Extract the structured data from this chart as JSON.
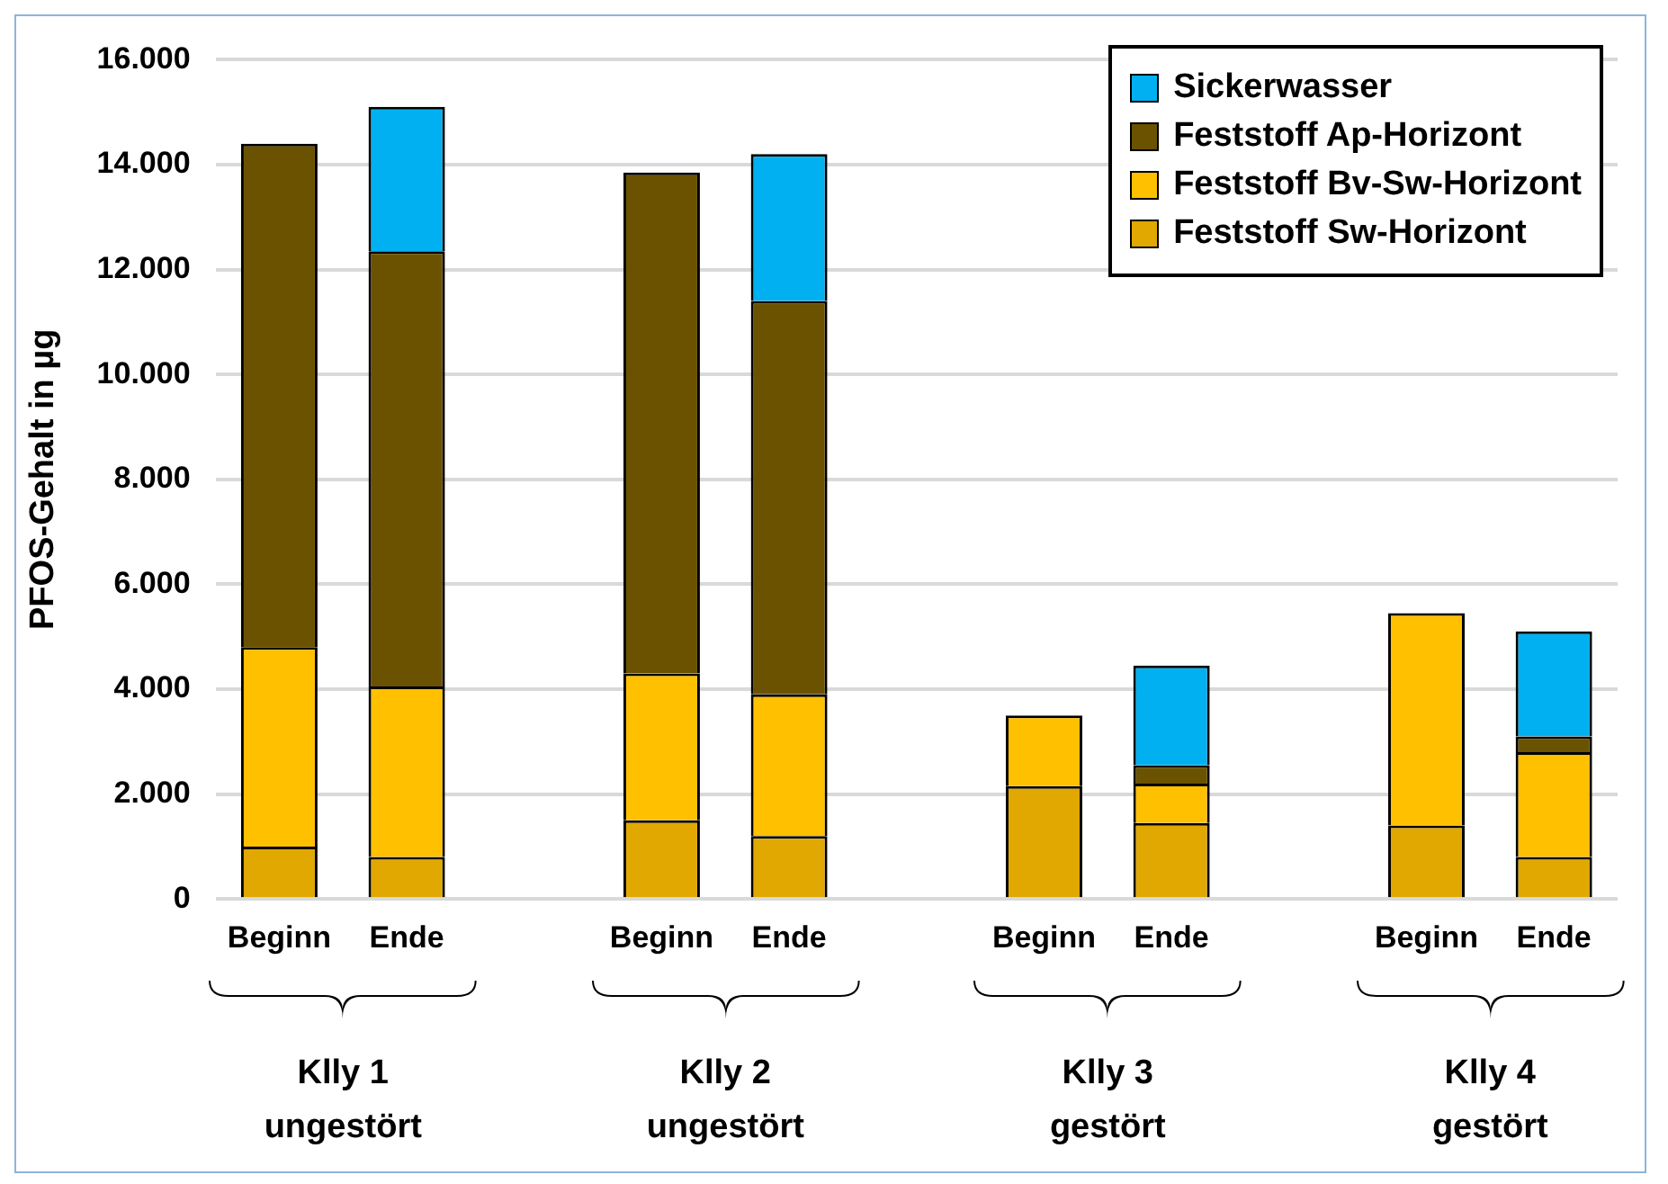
{
  "chart_data": {
    "type": "bar",
    "stacked": true,
    "ylabel": "PFOS-Gehalt in µg",
    "categories": [
      "Beginn",
      "Ende",
      null,
      "Beginn",
      "Ende",
      null,
      "Beginn",
      "Ende",
      null,
      "Beginn",
      "Ende"
    ],
    "series": [
      {
        "name": "Feststoff Sw-Horizont",
        "color": "#e0a800",
        "values": [
          1000,
          800,
          null,
          1500,
          1200,
          null,
          2150,
          1450,
          null,
          1400,
          800
        ]
      },
      {
        "name": "Feststoff Bv-Sw-Horizont",
        "color": "#ffc000",
        "values": [
          3800,
          3250,
          null,
          2800,
          2700,
          null,
          1350,
          750,
          null,
          4050,
          2000
        ]
      },
      {
        "name": "Feststoff Ap-Horizont",
        "color": "#6b5200",
        "values": [
          9600,
          8300,
          null,
          9550,
          7500,
          null,
          null,
          350,
          null,
          null,
          300
        ]
      },
      {
        "name": "Sickerwasser",
        "color": "#00b0f0",
        "values": [
          null,
          2750,
          null,
          null,
          2800,
          null,
          null,
          1900,
          null,
          null,
          2000
        ]
      }
    ],
    "ylim": [
      0,
      16000
    ],
    "yticks": [
      0,
      {
        "value": 2000,
        "label": "2.000"
      },
      {
        "value": 4000,
        "label": "4.000"
      },
      {
        "value": 6000,
        "label": "6.000"
      },
      {
        "value": 8000,
        "label": "8.000"
      },
      {
        "value": 10000,
        "label": "10.000"
      },
      {
        "value": 12000,
        "label": "12.000"
      },
      {
        "value": 14000,
        "label": "14.000"
      },
      {
        "value": 16000,
        "label": "16.000"
      }
    ],
    "grid": "y",
    "legend": "top right",
    "annotations": [
      "Klly 1\nungestört",
      "Klly 2\nungestört",
      "Klly 3\ngestört",
      "Klly 4\ngestört"
    ]
  }
}
